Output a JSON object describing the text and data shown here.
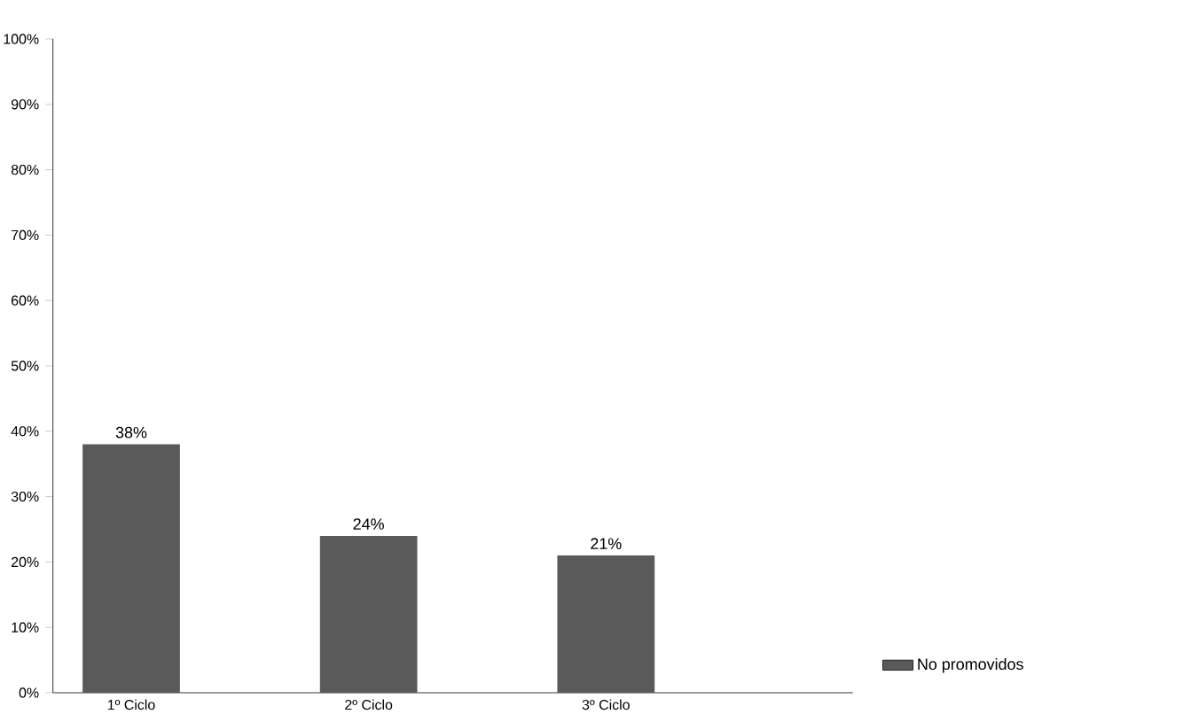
{
  "chart_data": {
    "type": "bar",
    "categories": [
      "1º Ciclo",
      "2º Ciclo",
      "3º Ciclo"
    ],
    "series": [
      {
        "name": "No promovidos",
        "color": "#5a5a5a",
        "values": [
          38,
          24,
          21
        ],
        "value_labels": [
          "38%",
          "24%",
          "21%"
        ]
      }
    ],
    "ylim": [
      0,
      100
    ],
    "yticks": [
      {
        "value": 0,
        "label": "0%"
      },
      {
        "value": 10,
        "label": "10%"
      },
      {
        "value": 20,
        "label": "20%"
      },
      {
        "value": 30,
        "label": "30%"
      },
      {
        "value": 40,
        "label": "40%"
      },
      {
        "value": 50,
        "label": "50%"
      },
      {
        "value": 60,
        "label": "60%"
      },
      {
        "value": 70,
        "label": "70%"
      },
      {
        "value": 80,
        "label": "80%"
      },
      {
        "value": 90,
        "label": "90%"
      },
      {
        "value": 100,
        "label": "100%"
      }
    ],
    "legend": "bottom right"
  }
}
